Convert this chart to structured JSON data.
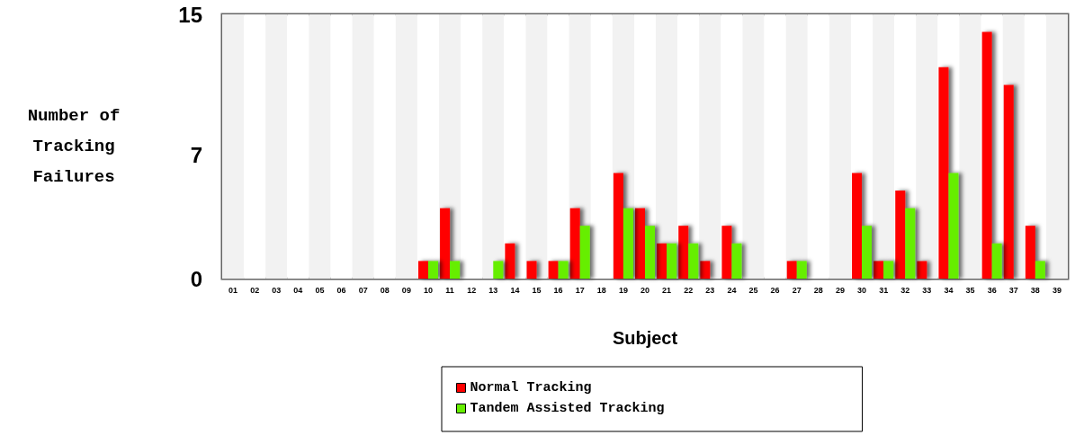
{
  "chart_data": {
    "type": "bar",
    "xlabel": "Subject",
    "ylabel": "Number of\nTracking\nFailures",
    "categories": [
      "01",
      "02",
      "03",
      "04",
      "05",
      "06",
      "07",
      "08",
      "09",
      "10",
      "11",
      "12",
      "13",
      "14",
      "15",
      "16",
      "17",
      "18",
      "19",
      "20",
      "21",
      "22",
      "23",
      "24",
      "25",
      "26",
      "27",
      "28",
      "29",
      "30",
      "31",
      "32",
      "33",
      "34",
      "35",
      "36",
      "37",
      "38",
      "39"
    ],
    "series": [
      {
        "name": "Normal Tracking",
        "color": "#ff0000",
        "values": [
          0,
          0,
          0,
          0,
          0,
          0,
          0,
          0,
          0,
          1,
          4,
          0,
          0,
          2,
          1,
          1,
          4,
          0,
          6,
          4,
          2,
          3,
          1,
          3,
          0,
          0,
          1,
          0,
          0,
          6,
          1,
          5,
          1,
          12,
          0,
          14,
          11,
          3,
          0
        ]
      },
      {
        "name": "Tandem Assisted Tracking",
        "color": "#66ee00",
        "values": [
          0,
          0,
          0,
          0,
          0,
          0,
          0,
          0,
          0,
          1,
          1,
          0,
          1,
          0,
          0,
          1,
          3,
          0,
          4,
          3,
          2,
          2,
          0,
          2,
          0,
          0,
          1,
          0,
          0,
          3,
          1,
          4,
          0,
          6,
          0,
          2,
          0,
          1,
          0
        ]
      }
    ],
    "ylim": [
      0,
      15
    ],
    "yticks": [
      0,
      7,
      15
    ],
    "legend": "bottom"
  }
}
